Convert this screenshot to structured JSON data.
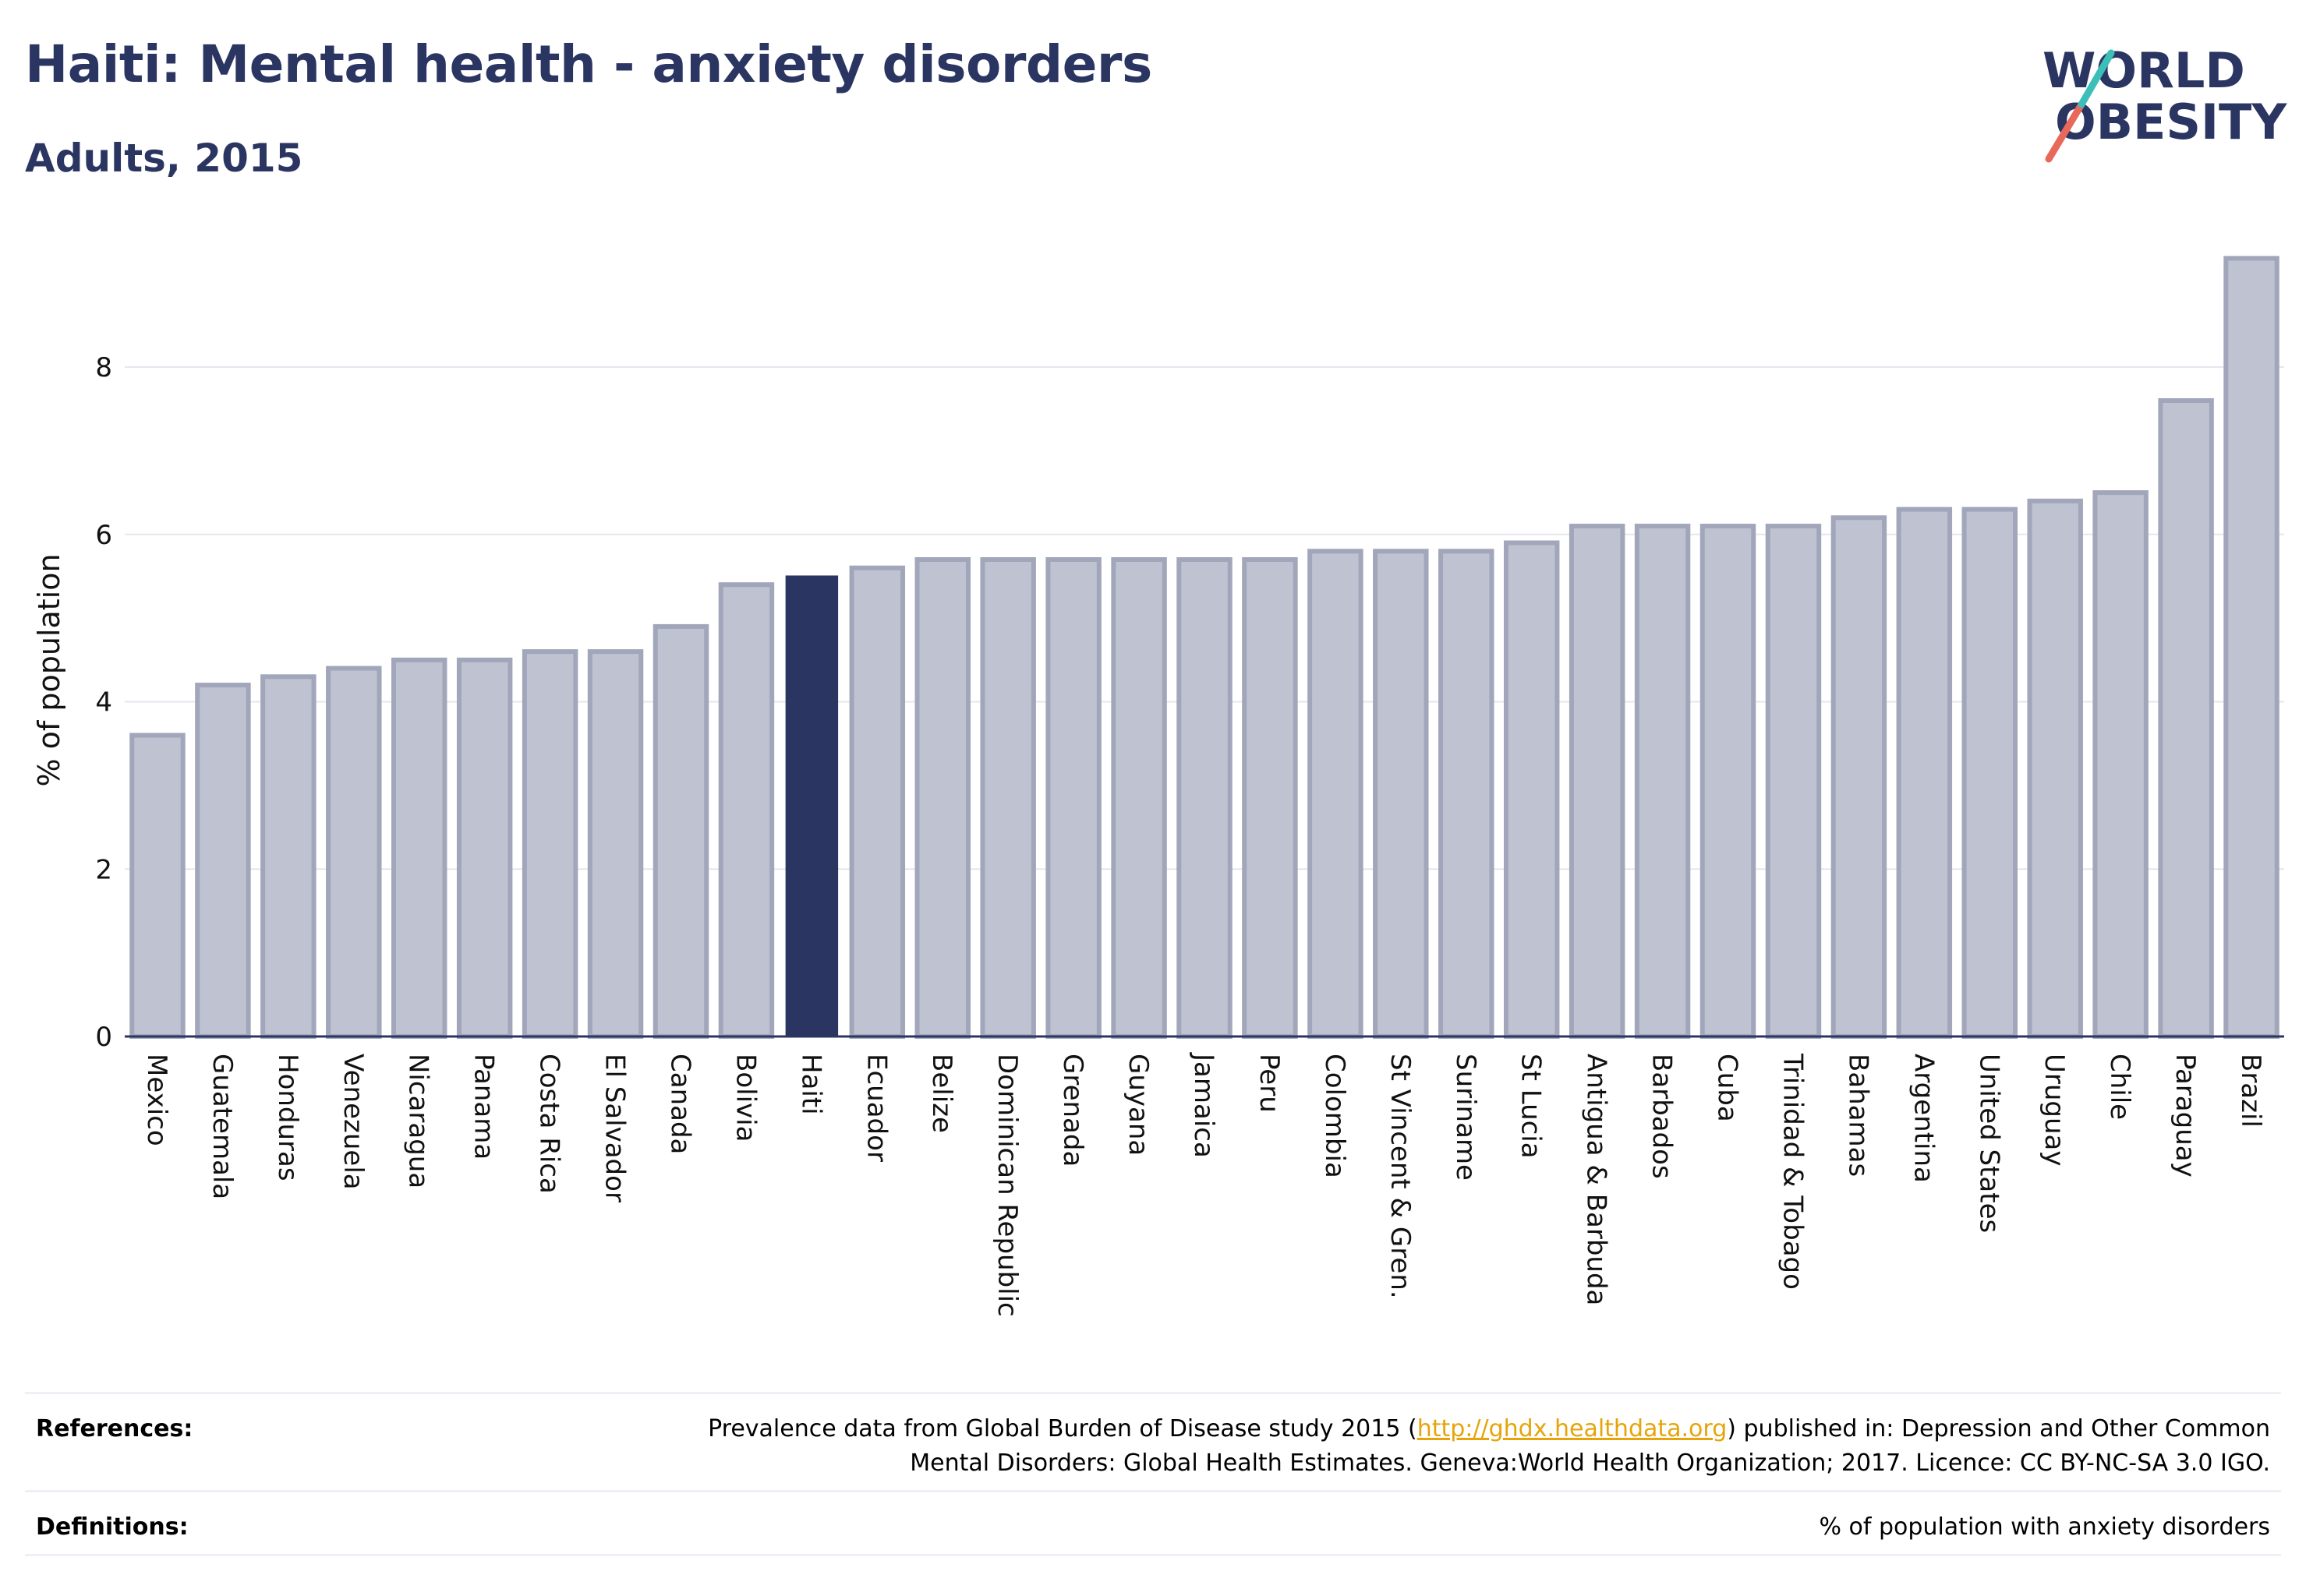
{
  "header": {
    "title": "Haiti: Mental health - anxiety disorders",
    "subtitle": "Adults, 2015"
  },
  "logo": {
    "line1": "WORLD",
    "line2": "OBESITY"
  },
  "chart_data": {
    "type": "bar",
    "ylabel": "% of population",
    "ylim": [
      0,
      9.5
    ],
    "yticks": [
      0,
      2,
      4,
      6,
      8
    ],
    "grid": true,
    "highlight": "Haiti",
    "categories": [
      "Mexico",
      "Guatemala",
      "Honduras",
      "Venezuela",
      "Nicaragua",
      "Panama",
      "Costa Rica",
      "El Salvador",
      "Canada",
      "Bolivia",
      "Haiti",
      "Ecuador",
      "Belize",
      "Dominican Republic",
      "Grenada",
      "Guyana",
      "Jamaica",
      "Peru",
      "Colombia",
      "St Vincent & Gren.",
      "Suriname",
      "St Lucia",
      "Antigua & Barbuda",
      "Barbados",
      "Cuba",
      "Trinidad & Tobago",
      "Bahamas",
      "Argentina",
      "United States",
      "Uruguay",
      "Chile",
      "Paraguay",
      "Brazil"
    ],
    "values": [
      3.6,
      4.2,
      4.3,
      4.4,
      4.5,
      4.5,
      4.6,
      4.6,
      4.9,
      5.4,
      5.5,
      5.6,
      5.7,
      5.7,
      5.7,
      5.7,
      5.7,
      5.7,
      5.8,
      5.8,
      5.8,
      5.9,
      6.1,
      6.1,
      6.1,
      6.1,
      6.2,
      6.3,
      6.3,
      6.4,
      6.5,
      7.6,
      9.3
    ],
    "colors": {
      "bar": "#bfc2d0",
      "bar_border": "#a1a6bb",
      "highlight": "#2b3561",
      "grid": "#e5e7ee",
      "axis": "#2b3561"
    }
  },
  "footer": {
    "references_label": "References:",
    "references_text_1a": "Prevalence data from Global Burden of Disease study 2015 (",
    "references_link": "http://ghdx.healthdata.org",
    "references_text_1b": ") published in: Depression and Other Common",
    "references_text_2": "Mental Disorders: Global Health Estimates. Geneva:World Health Organization; 2017. Licence: CC BY-NC-SA 3.0 IGO.",
    "definitions_label": "Definitions:",
    "definitions_text": "% of population with anxiety disorders"
  }
}
